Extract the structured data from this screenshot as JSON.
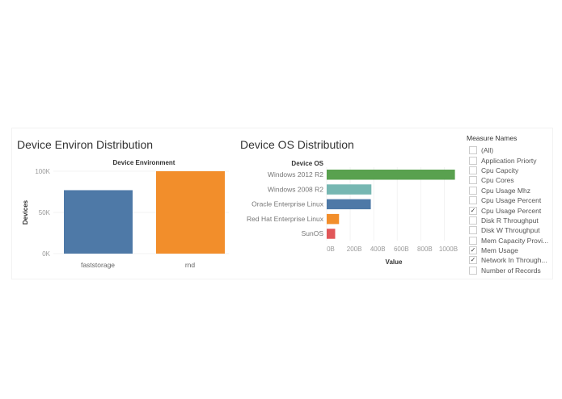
{
  "chart_data": [
    {
      "type": "bar",
      "title": "Device Environ Distribution",
      "header": "Device Environment",
      "ylabel": "Devices",
      "categories": [
        "faststorage",
        "rnd"
      ],
      "values": [
        77000,
        100000
      ],
      "colors": [
        "#4e79a7",
        "#f28e2b"
      ],
      "ylim": [
        0,
        100000
      ],
      "yticks": [
        "0K",
        "50K",
        "100K"
      ],
      "ytick_values": [
        0,
        50000,
        100000
      ]
    },
    {
      "type": "bar",
      "orientation": "horizontal",
      "title": "Device OS Distribution",
      "header": "Device OS",
      "xlabel": "Value",
      "categories": [
        "Windows 2012 R2",
        "Windows 2008 R2",
        "Oracle Enterprise Linux",
        "Red Hat Enterprise Linux",
        "SunOS"
      ],
      "values": [
        1090,
        380,
        375,
        105,
        72
      ],
      "unit": "B",
      "colors": [
        "#59a14f",
        "#76b7b2",
        "#4e79a7",
        "#f28e2b",
        "#e15759"
      ],
      "xticks": [
        "0B",
        "200B",
        "400B",
        "600B",
        "800B",
        "1000B"
      ],
      "xtick_values": [
        0,
        200,
        400,
        600,
        800,
        1000
      ]
    }
  ],
  "legend": {
    "title": "Measure Names",
    "items": [
      {
        "label": "(All)",
        "checked": false
      },
      {
        "label": "Application Priorty",
        "checked": false
      },
      {
        "label": "Cpu Capcity",
        "checked": false
      },
      {
        "label": "Cpu Cores",
        "checked": false
      },
      {
        "label": "Cpu Usage Mhz",
        "checked": false
      },
      {
        "label": "Cpu Usage Percent",
        "checked": false
      },
      {
        "label": "Cpu Usage Percent",
        "checked": true
      },
      {
        "label": "Disk R Throughput",
        "checked": false
      },
      {
        "label": "Disk W Throughput",
        "checked": false
      },
      {
        "label": "Mem Capacity Provi...",
        "checked": false
      },
      {
        "label": "Mem Usage",
        "checked": true
      },
      {
        "label": "Network In Through...",
        "checked": true
      },
      {
        "label": "Number of Records",
        "checked": false
      }
    ]
  }
}
